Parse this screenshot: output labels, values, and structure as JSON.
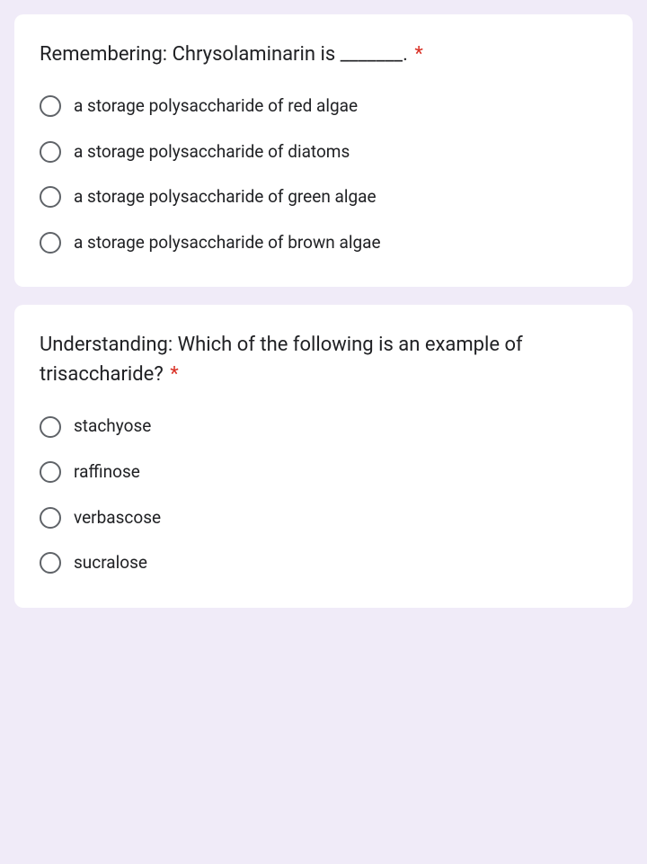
{
  "background_color": "#f0ebf8",
  "card_background": "#ffffff",
  "required_color": "#d93025",
  "radio_border_color": "#5f6368",
  "text_color": "#202124",
  "questions": [
    {
      "title": "Remembering: Chrysolaminarin is _______.",
      "required": true,
      "options": [
        "a storage polysaccharide of red algae",
        "a storage polysaccharide of diatoms",
        "a storage polysaccharide of green algae",
        "a storage polysaccharide of brown algae"
      ]
    },
    {
      "title": "Understanding: Which of the following is an example of trisaccharide?",
      "required": true,
      "options": [
        "stachyose",
        "raffinose",
        "verbascose",
        "sucralose"
      ]
    }
  ]
}
